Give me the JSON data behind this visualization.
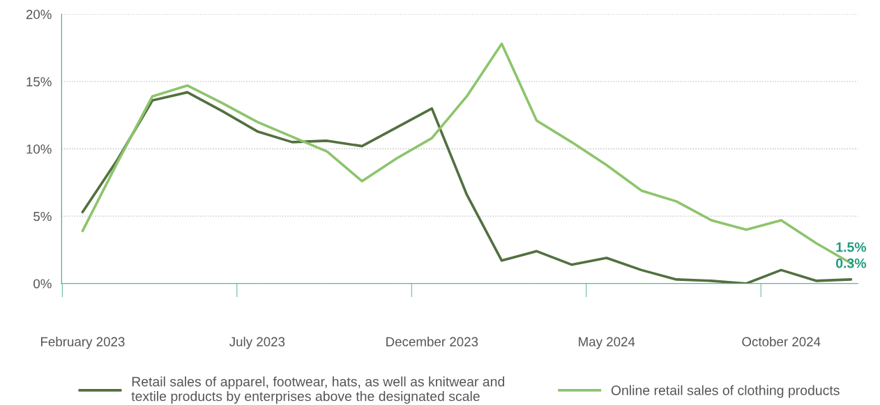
{
  "chart_data": {
    "type": "line",
    "categories": [
      "February 2023",
      null,
      null,
      null,
      null,
      "July 2023",
      null,
      null,
      null,
      null,
      "December 2023",
      null,
      null,
      null,
      null,
      "May 2024",
      null,
      null,
      null,
      null,
      "October 2024",
      null,
      null
    ],
    "series": [
      {
        "name": "Retail sales of apparel, footwear, hats, as well as knitwear and\ntextile products by enterprises above the designated scale",
        "color": "#52703f",
        "values": [
          5.3,
          9.2,
          13.6,
          14.2,
          12.8,
          11.3,
          10.5,
          10.6,
          10.2,
          11.6,
          13.0,
          6.6,
          1.7,
          2.4,
          1.4,
          1.9,
          1.0,
          0.3,
          0.2,
          0.0,
          1.0,
          0.2,
          0.3
        ],
        "value_labels": [
          null,
          null,
          null,
          null,
          null,
          null,
          null,
          null,
          null,
          null,
          null,
          null,
          null,
          null,
          null,
          null,
          null,
          null,
          null,
          null,
          null,
          null,
          "0.3%"
        ]
      },
      {
        "name": "Online retail sales of clothing products",
        "color": "#8dc46c",
        "values": [
          3.9,
          9.0,
          13.9,
          14.7,
          13.4,
          12.0,
          10.9,
          9.8,
          7.6,
          9.3,
          10.8,
          13.9,
          17.8,
          12.1,
          10.5,
          8.8,
          6.9,
          6.1,
          4.7,
          4.0,
          4.7,
          3.0,
          1.5
        ],
        "value_labels": [
          null,
          null,
          null,
          null,
          null,
          null,
          null,
          null,
          null,
          null,
          null,
          null,
          null,
          null,
          null,
          null,
          null,
          null,
          null,
          null,
          null,
          null,
          "1.5%"
        ]
      }
    ],
    "ylim": [
      0,
      20
    ],
    "yticks": [
      {
        "value": 0,
        "label": "0%"
      },
      {
        "value": 5,
        "label": "5%"
      },
      {
        "value": 10,
        "label": "10%"
      },
      {
        "value": 15,
        "label": "15%"
      },
      {
        "value": 20,
        "label": "20%"
      }
    ],
    "grid": "y",
    "legend": "bottom",
    "marker": "none",
    "line_style": "solid"
  }
}
